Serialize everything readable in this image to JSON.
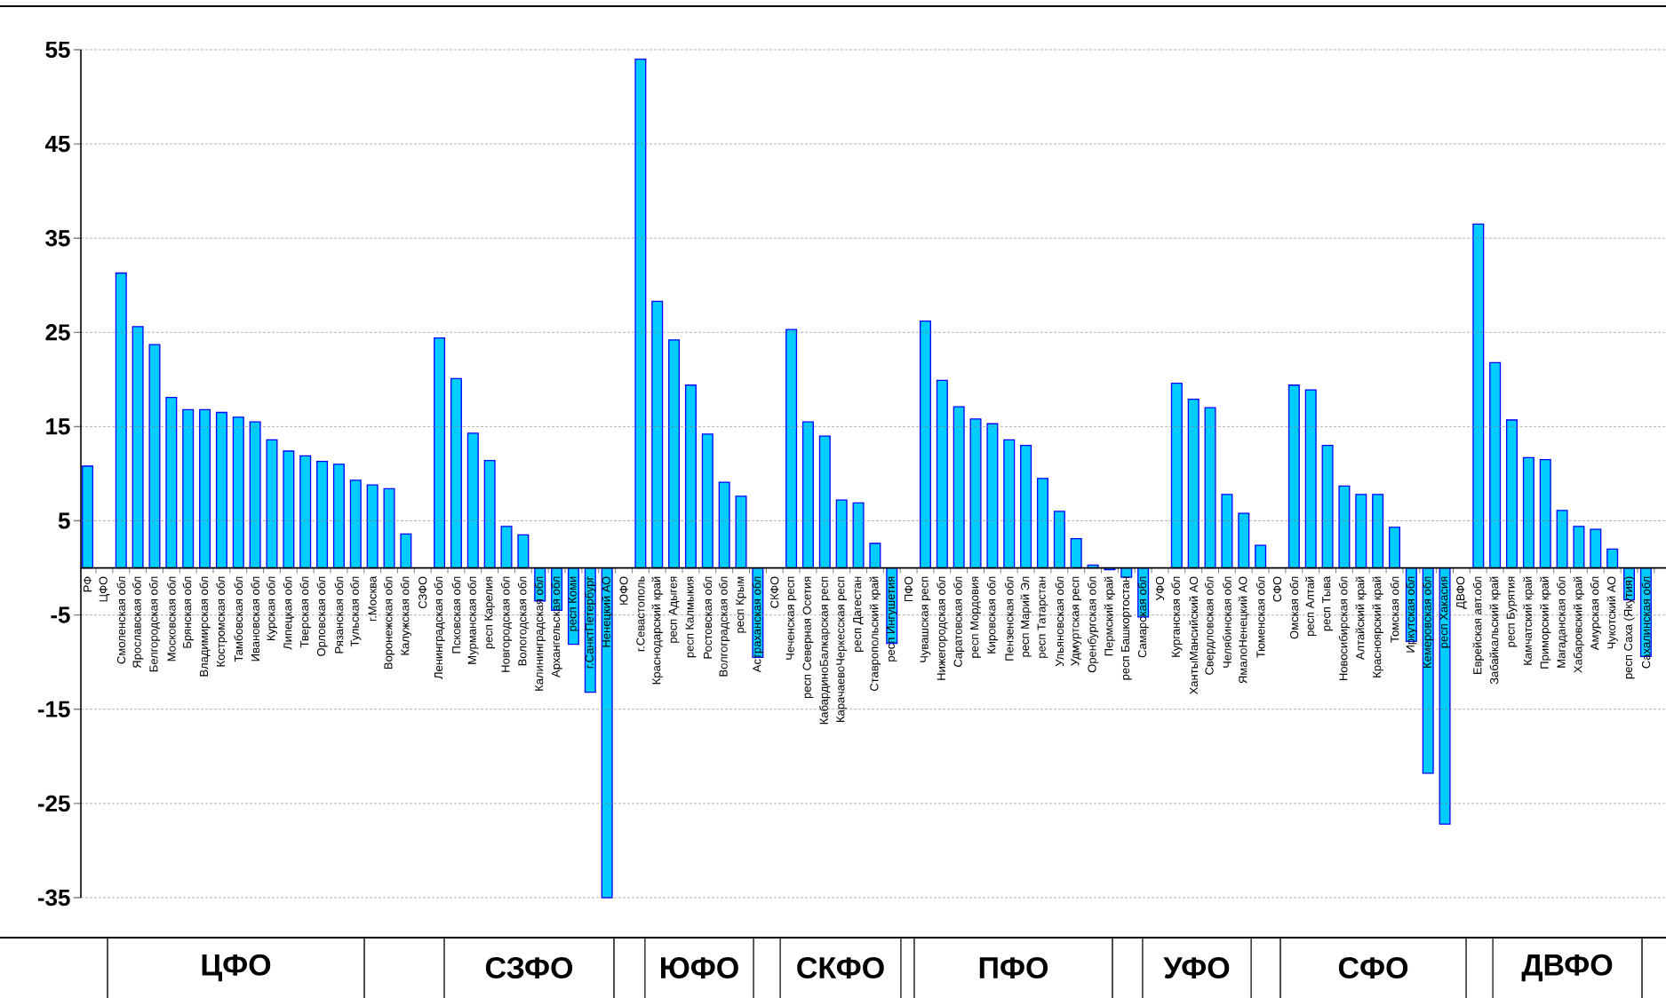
{
  "chart_data": {
    "type": "bar",
    "categories": [
      "РФ",
      "ЦФО",
      "Смоленская обл",
      "Ярославская обл",
      "Белгородская обл",
      "Московская обл",
      "Брянская обл",
      "Владимирская обл",
      "Костромская обл",
      "Тамбовская обл",
      "Ивановская обл",
      "Курская обл",
      "Липецкая обл",
      "Тверская обл",
      "Орловская обл",
      "Рязанская обл",
      "Тульская обл",
      "г.Москва",
      "Воронежская обл",
      "Калужская обл",
      "СЗФО",
      "Ленинградская обл",
      "Псковская обл",
      "Мурманская обл",
      "респ Карелия",
      "Новгородская обл",
      "Вологодская обл",
      "Калининградская обл",
      "Архангельская обл",
      "респ Коми",
      "г.СанктПетербург",
      "Ненецкий АО",
      "ЮФО",
      "г.Севастополь",
      "Краснодарский край",
      "респ Адыгея",
      "респ Калмыкия",
      "Ростовская обл",
      "Волгоградская обл",
      "респ Крым",
      "Астраханская обл",
      "СКФО",
      "Чеченская респ",
      "респ Северная Осетия",
      "КабардиноБалкарская респ",
      "КарачаевоЧеркесская респ",
      "респ Дагестан",
      "Ставропольский край",
      "респ Ингушетия",
      "ПФО",
      "Чувашская респ",
      "Нижегородская обл",
      "Саратовская обл",
      "респ Мордовия",
      "Кировская обл",
      "Пензенская обл",
      "респ Марий Эл",
      "респ Татарстан",
      "Ульяновская обл",
      "Удмуртская респ",
      "Оренбургская обл",
      "Пермский край",
      "респ Башкортостан",
      "Самарская обл",
      "УФО",
      "Курганская обл",
      "ХантыМансийский АО",
      "Свердловская обл",
      "Челябинская обл",
      "ЯмалоНенецкий АО",
      "Тюменская обл",
      "СФО",
      "Омская обл",
      "респ Алтай",
      "респ Тыва",
      "Новосибирская обл",
      "Алтайский край",
      "Красноярский край",
      "Томская обл",
      "Иркутская обл",
      "Кемеровская обл",
      "респ Хакасия",
      "ДВФО",
      "Еврейская авт.обл",
      "Забайкальский край",
      "респ Бурятия",
      "Камчатский край",
      "Приморский край",
      "Магаданская обл",
      "Хабаровский край",
      "Амурская обл",
      "Чукотский АО",
      "респ Саха (Якутия)",
      "Сахалинская обл"
    ],
    "values": [
      10.8,
      null,
      31.3,
      25.6,
      23.7,
      18.1,
      16.8,
      16.8,
      16.5,
      16.0,
      15.5,
      13.6,
      12.4,
      11.9,
      11.3,
      11.0,
      9.3,
      8.8,
      8.4,
      3.6,
      null,
      24.4,
      20.1,
      14.3,
      11.4,
      4.4,
      3.5,
      -3.5,
      -4.5,
      -8.1,
      -13.2,
      -35,
      null,
      54.0,
      28.3,
      24.2,
      19.4,
      14.2,
      9.1,
      7.6,
      -9.5,
      null,
      25.3,
      15.5,
      14.0,
      7.2,
      6.9,
      2.6,
      -8.0,
      null,
      26.2,
      19.9,
      17.1,
      15.8,
      15.3,
      13.6,
      13.0,
      9.5,
      6.0,
      3.1,
      0.3,
      -0.2,
      -1.0,
      -5.2,
      null,
      19.6,
      17.9,
      17.0,
      7.8,
      5.8,
      2.4,
      null,
      19.4,
      18.9,
      13.0,
      8.7,
      7.8,
      7.8,
      4.3,
      -7.8,
      -21.8,
      -27.2,
      null,
      36.5,
      21.8,
      15.7,
      11.7,
      11.5,
      6.1,
      4.4,
      4.1,
      2.0,
      -3.4,
      -9.4
    ],
    "color": "#00ccff",
    "ylim": [
      -35,
      55
    ],
    "yticks": [
      -35,
      -25,
      -15,
      -5,
      5,
      15,
      25,
      35,
      45,
      55
    ],
    "grid": "y",
    "annotations": [
      "ЦФО",
      "СЗФО",
      "ЮФО",
      "СКФО",
      "ПФО",
      "УФО",
      "СФО",
      "ДВФО"
    ]
  }
}
